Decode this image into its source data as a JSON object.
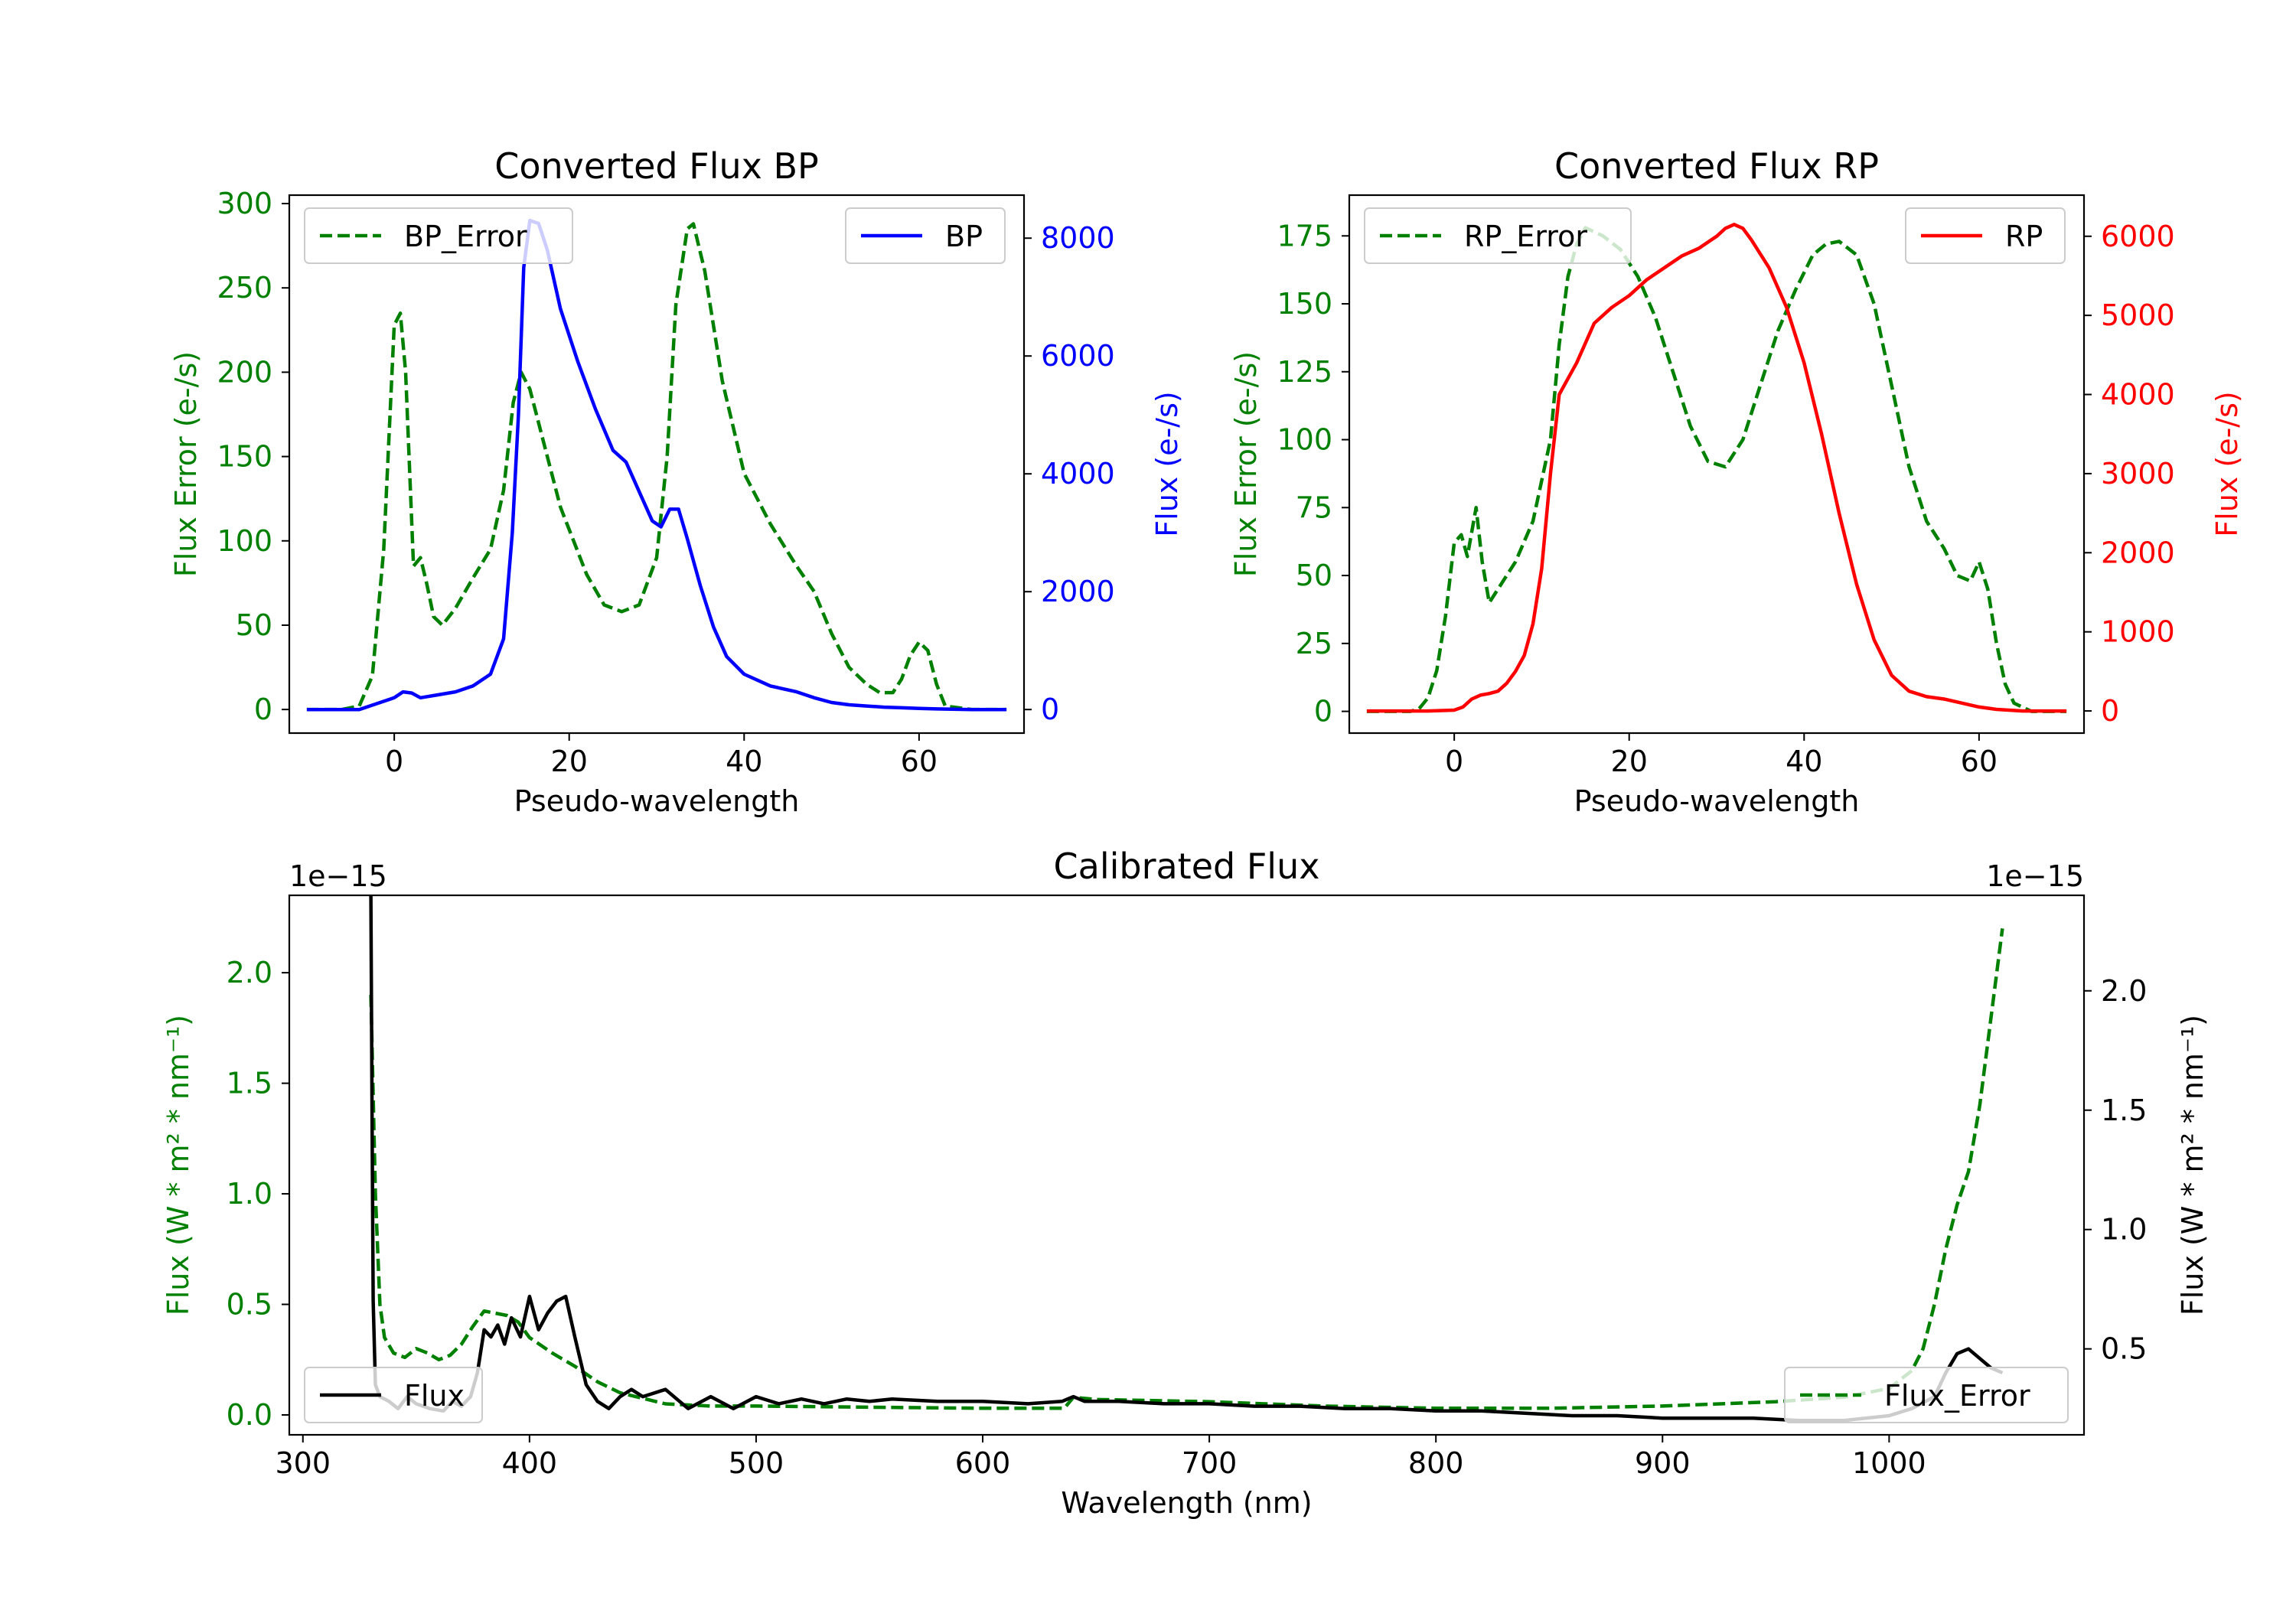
{
  "colors": {
    "error": "#008000",
    "bp": "#0000ff",
    "rp": "#ff0000",
    "flux": "#000000",
    "axis": "#000000"
  },
  "chart_data": [
    {
      "type": "line",
      "title": "Converted Flux BP",
      "xlabel": "Pseudo-wavelength",
      "ylabel_left": "Flux Error (e-/s)",
      "ylabel_right": "Flux (e-/s)",
      "xlim": [
        -12,
        72
      ],
      "ylim_left": [
        -14,
        305
      ],
      "ylim_right": [
        -400,
        8730
      ],
      "xticks": [
        "0",
        "20",
        "40",
        "60"
      ],
      "xtick_values": [
        0,
        20,
        40,
        60
      ],
      "yticks_left": [
        "0",
        "50",
        "100",
        "150",
        "200",
        "250",
        "300"
      ],
      "ytick_values_left": [
        0,
        50,
        100,
        150,
        200,
        250,
        300
      ],
      "yticks_right": [
        "0",
        "2000",
        "4000",
        "6000",
        "8000"
      ],
      "ytick_values_right": [
        0,
        2000,
        4000,
        6000,
        8000
      ],
      "legend_left": "BP_Error",
      "legend_right": "BP",
      "series": [
        {
          "name": "BP_Error",
          "axis": "left",
          "style": "dashed",
          "x": [
            -10,
            -6,
            -4,
            -2.5,
            -1.2,
            0,
            0.7,
            1.3,
            2.2,
            3,
            3.7,
            4.5,
            5.5,
            7,
            9,
            11,
            12.5,
            13.6,
            14.5,
            15.5,
            17,
            19,
            22,
            24,
            26,
            28,
            30,
            31.2,
            32.2,
            33.5,
            34.2,
            35.5,
            37.5,
            40,
            43,
            46,
            48,
            50,
            52,
            54,
            55.5,
            57,
            58,
            59,
            60,
            61,
            62,
            63,
            66,
            70
          ],
          "y": [
            0,
            0,
            2,
            20,
            95,
            228,
            235,
            200,
            85,
            90,
            75,
            55,
            50,
            60,
            78,
            95,
            130,
            182,
            200,
            190,
            160,
            120,
            80,
            62,
            58,
            62,
            90,
            150,
            240,
            285,
            288,
            260,
            195,
            140,
            110,
            85,
            70,
            45,
            25,
            15,
            10,
            10,
            18,
            32,
            40,
            35,
            15,
            2,
            0,
            0
          ]
        },
        {
          "name": "BP",
          "axis": "right",
          "style": "solid",
          "x": [
            -10,
            -6,
            -4,
            -2,
            0,
            1,
            2,
            3,
            5,
            7,
            9,
            11,
            12.5,
            13.5,
            14.2,
            14.8,
            15.5,
            16.5,
            17.5,
            19,
            21,
            23,
            25,
            26.5,
            28,
            29.5,
            30.5,
            31.5,
            32.5,
            33.5,
            35,
            36.5,
            38,
            40,
            43,
            46,
            48,
            50,
            52,
            54,
            56,
            58,
            60,
            62,
            66,
            70
          ],
          "y": [
            0,
            0,
            0,
            100,
            200,
            300,
            280,
            200,
            250,
            300,
            400,
            600,
            1200,
            3000,
            5000,
            7500,
            8300,
            8250,
            7800,
            6800,
            5900,
            5100,
            4400,
            4200,
            3700,
            3200,
            3100,
            3400,
            3400,
            2900,
            2100,
            1400,
            900,
            600,
            400,
            300,
            200,
            120,
            80,
            60,
            40,
            30,
            20,
            10,
            0,
            0
          ]
        }
      ]
    },
    {
      "type": "line",
      "title": "Converted Flux RP",
      "xlabel": "Pseudo-wavelength",
      "ylabel_left": "Flux Error (e-/s)",
      "ylabel_right": "Flux (e-/s)",
      "xlim": [
        -12,
        72
      ],
      "ylim_left": [
        -8,
        190
      ],
      "ylim_right": [
        -280,
        6520
      ],
      "xticks": [
        "0",
        "20",
        "40",
        "60"
      ],
      "xtick_values": [
        0,
        20,
        40,
        60
      ],
      "yticks_left": [
        "0",
        "25",
        "50",
        "75",
        "100",
        "125",
        "150",
        "175"
      ],
      "ytick_values_left": [
        0,
        25,
        50,
        75,
        100,
        125,
        150,
        175
      ],
      "yticks_right": [
        "0",
        "1000",
        "2000",
        "3000",
        "4000",
        "5000",
        "6000"
      ],
      "ytick_values_right": [
        0,
        1000,
        2000,
        3000,
        4000,
        5000,
        6000
      ],
      "legend_left": "RP_Error",
      "legend_right": "RP",
      "series": [
        {
          "name": "RP_Error",
          "axis": "left",
          "style": "dashed",
          "x": [
            -10,
            -5,
            -4,
            -3,
            -2,
            -1,
            0,
            0.8,
            1.5,
            2.5,
            3.2,
            4,
            5,
            7,
            9,
            11,
            12,
            13,
            14,
            15,
            17,
            19,
            21,
            23,
            25,
            27,
            29,
            31,
            33,
            35,
            37,
            39,
            41,
            42.5,
            44,
            46,
            48,
            50,
            52,
            54,
            56,
            57.5,
            59,
            60,
            61,
            62,
            63,
            64,
            66,
            70
          ],
          "y": [
            0,
            0,
            1,
            5,
            15,
            35,
            62,
            65,
            57,
            75,
            55,
            40,
            45,
            55,
            70,
            100,
            135,
            160,
            172,
            178,
            175,
            170,
            160,
            145,
            125,
            105,
            92,
            90,
            100,
            120,
            140,
            155,
            168,
            172,
            173,
            168,
            150,
            120,
            90,
            70,
            60,
            50,
            48,
            55,
            45,
            25,
            10,
            3,
            0,
            0
          ]
        },
        {
          "name": "RP",
          "axis": "right",
          "style": "solid",
          "x": [
            -10,
            -5,
            -3,
            0,
            1,
            2,
            3,
            4,
            5,
            6,
            7,
            8,
            9,
            10,
            11,
            12,
            13,
            14,
            16,
            18,
            20,
            22,
            24,
            26,
            28,
            30,
            31,
            32,
            33,
            34,
            36,
            38,
            40,
            42,
            44,
            46,
            48,
            50,
            52,
            54,
            56,
            58,
            60,
            62,
            65,
            70
          ],
          "y": [
            0,
            0,
            0,
            10,
            50,
            150,
            200,
            220,
            250,
            350,
            500,
            700,
            1100,
            1800,
            3000,
            4000,
            4200,
            4400,
            4900,
            5100,
            5250,
            5450,
            5600,
            5750,
            5850,
            6000,
            6100,
            6150,
            6100,
            5950,
            5600,
            5100,
            4400,
            3500,
            2500,
            1600,
            900,
            450,
            250,
            180,
            150,
            100,
            50,
            20,
            0,
            0
          ]
        }
      ]
    },
    {
      "type": "line",
      "title": "Calibrated Flux",
      "xlabel": "Wavelength (nm)",
      "ylabel_left": "Flux (W * m² * nm⁻¹)",
      "ylabel_right": "Flux (W * m² * nm⁻¹)",
      "offset_left": "1e−15",
      "offset_right": "1e−15",
      "xlim": [
        294,
        1086
      ],
      "ylim_left": [
        -0.09,
        2.35
      ],
      "ylim_right": [
        0.14,
        2.4
      ],
      "xticks": [
        "300",
        "400",
        "500",
        "600",
        "700",
        "800",
        "900",
        "1000"
      ],
      "xtick_values": [
        300,
        400,
        500,
        600,
        700,
        800,
        900,
        1000
      ],
      "yticks_left": [
        "0.0",
        "0.5",
        "1.0",
        "1.5",
        "2.0"
      ],
      "ytick_values_left": [
        0,
        0.5,
        1.0,
        1.5,
        2.0
      ],
      "yticks_right": [
        "0.5",
        "1.0",
        "1.5",
        "2.0"
      ],
      "ytick_values_right": [
        0.5,
        1.0,
        1.5,
        2.0
      ],
      "legend_left": "Flux",
      "legend_right": "Flux_Error",
      "series": [
        {
          "name": "Flux_Error",
          "axis": "left",
          "style": "dashed",
          "x": [
            330,
            332,
            334,
            336,
            340,
            345,
            350,
            355,
            360,
            365,
            370,
            375,
            380,
            385,
            390,
            395,
            400,
            410,
            420,
            430,
            440,
            460,
            480,
            500,
            550,
            600,
            636,
            640,
            650,
            700,
            750,
            800,
            850,
            900,
            950,
            980,
            1000,
            1010,
            1015,
            1020,
            1025,
            1030,
            1035,
            1040,
            1045,
            1050
          ],
          "y": [
            1.9,
            1.0,
            0.5,
            0.35,
            0.28,
            0.26,
            0.3,
            0.28,
            0.25,
            0.27,
            0.32,
            0.4,
            0.47,
            0.46,
            0.45,
            0.42,
            0.35,
            0.28,
            0.22,
            0.15,
            0.1,
            0.05,
            0.04,
            0.04,
            0.035,
            0.03,
            0.03,
            0.08,
            0.07,
            0.06,
            0.04,
            0.03,
            0.03,
            0.04,
            0.06,
            0.08,
            0.12,
            0.2,
            0.3,
            0.5,
            0.75,
            0.95,
            1.1,
            1.4,
            1.8,
            2.2
          ]
        },
        {
          "name": "Flux",
          "axis": "right",
          "style": "solid",
          "x": [
            330,
            330.5,
            331,
            332,
            334,
            338,
            342,
            346,
            350,
            356,
            362,
            366,
            370,
            374,
            377,
            380,
            383,
            386,
            389,
            392,
            396,
            400,
            404,
            408,
            412,
            416,
            420,
            425,
            430,
            435,
            440,
            445,
            450,
            460,
            470,
            480,
            490,
            500,
            510,
            520,
            530,
            540,
            550,
            560,
            580,
            600,
            620,
            635,
            640,
            645,
            660,
            680,
            700,
            720,
            740,
            760,
            780,
            800,
            820,
            840,
            860,
            880,
            900,
            920,
            940,
            960,
            980,
            1000,
            1010,
            1020,
            1025,
            1030,
            1035,
            1040,
            1045,
            1050
          ],
          "y": [
            2.4,
            1.5,
            0.7,
            0.35,
            0.3,
            0.28,
            0.25,
            0.3,
            0.27,
            0.25,
            0.24,
            0.28,
            0.26,
            0.3,
            0.4,
            0.58,
            0.55,
            0.6,
            0.52,
            0.63,
            0.55,
            0.72,
            0.58,
            0.65,
            0.7,
            0.72,
            0.55,
            0.35,
            0.28,
            0.25,
            0.3,
            0.33,
            0.3,
            0.33,
            0.25,
            0.3,
            0.25,
            0.3,
            0.27,
            0.29,
            0.27,
            0.29,
            0.28,
            0.29,
            0.28,
            0.28,
            0.27,
            0.28,
            0.3,
            0.28,
            0.28,
            0.27,
            0.27,
            0.26,
            0.26,
            0.25,
            0.25,
            0.24,
            0.24,
            0.23,
            0.22,
            0.22,
            0.21,
            0.21,
            0.21,
            0.2,
            0.2,
            0.22,
            0.25,
            0.3,
            0.4,
            0.48,
            0.5,
            0.46,
            0.42,
            0.4
          ]
        }
      ]
    }
  ]
}
